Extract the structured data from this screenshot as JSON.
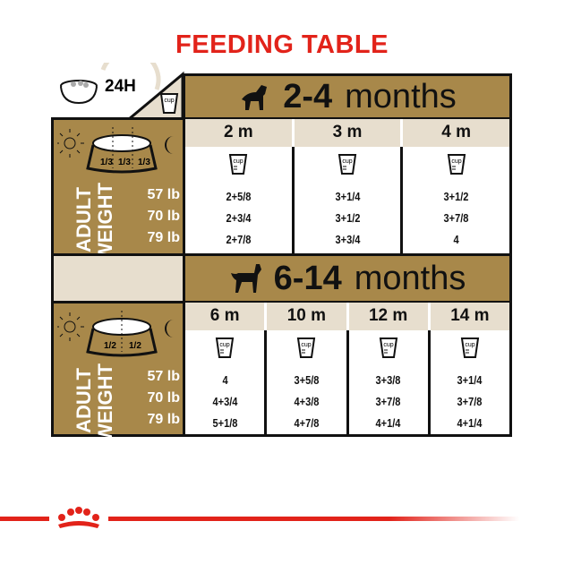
{
  "title": "FEEDING TABLE",
  "header_label": "24H",
  "cup_label": "cup",
  "colors": {
    "title": "#e2231a",
    "gold": "#a8884a",
    "beige": "#e7dece"
  },
  "axis": {
    "adult": "ADULT",
    "weight": "WEIGHT",
    "weights": [
      "57 lb",
      "70 lb",
      "79 lb"
    ]
  },
  "sections": [
    {
      "range": "2-4",
      "unit": "months",
      "bowl_fractions": [
        "1/3",
        "1/3",
        "1/3"
      ],
      "columns": [
        {
          "label": "2 m",
          "values": [
            "2+5/8",
            "2+3/4",
            "2+7/8"
          ]
        },
        {
          "label": "3 m",
          "values": [
            "3+1/4",
            "3+1/2",
            "3+3/4"
          ]
        },
        {
          "label": "4 m",
          "values": [
            "3+1/2",
            "3+7/8",
            "4"
          ]
        }
      ]
    },
    {
      "range": "6-14",
      "unit": "months",
      "bowl_fractions": [
        "1/2",
        "1/2"
      ],
      "columns": [
        {
          "label": "6 m",
          "values": [
            "4",
            "4+3/4",
            "5+1/8"
          ]
        },
        {
          "label": "10 m",
          "values": [
            "3+5/8",
            "4+3/8",
            "4+7/8"
          ]
        },
        {
          "label": "12 m",
          "values": [
            "3+3/8",
            "3+7/8",
            "4+1/4"
          ]
        },
        {
          "label": "14 m",
          "values": [
            "3+1/4",
            "3+7/8",
            "4+1/4"
          ]
        }
      ]
    }
  ]
}
